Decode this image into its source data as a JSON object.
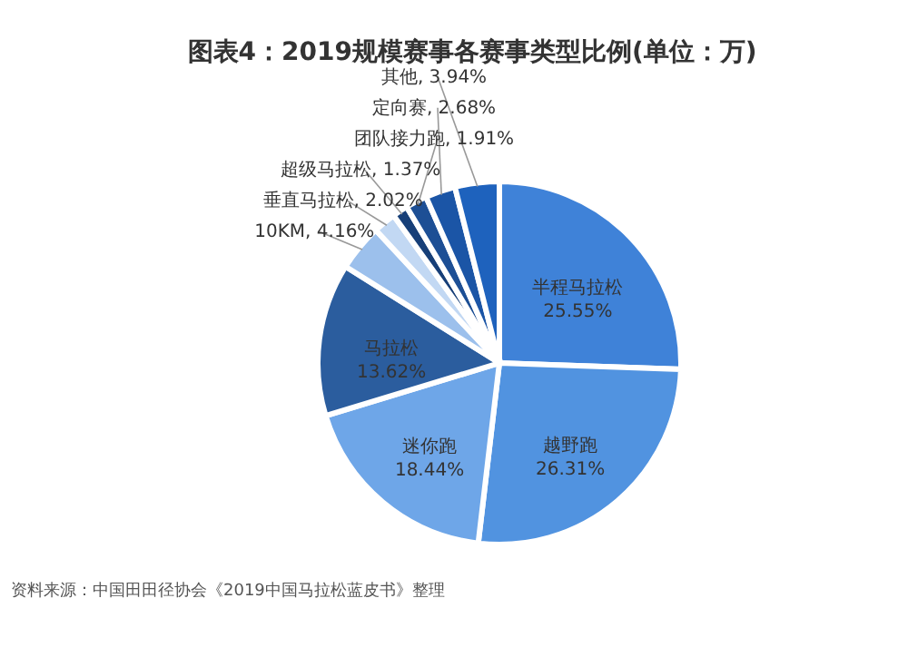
{
  "chart_data": {
    "type": "pie",
    "title": "图表4：2019规模赛事各赛事类型比例(单位：万)",
    "categories": [
      "半程马拉松",
      "越野跑",
      "迷你跑",
      "马拉松",
      "10KM",
      "垂直马拉松",
      "超级马拉松",
      "团队接力跑",
      "定向赛",
      "其他"
    ],
    "values": [
      25.55,
      26.31,
      18.44,
      13.62,
      4.16,
      2.02,
      1.37,
      1.91,
      2.68,
      3.94
    ],
    "value_labels": [
      "25.55%",
      "26.31%",
      "18.44%",
      "13.62%",
      "4.16%",
      "2.02%",
      "1.37%",
      "1.91%",
      "2.68%",
      "3.94%"
    ],
    "colors": [
      "#3f82d8",
      "#5193e0",
      "#6ea6e8",
      "#2b5d9e",
      "#9cc0ec",
      "#c2d8f3",
      "#173f78",
      "#1d4f95",
      "#1b55a6",
      "#1e62bd"
    ],
    "annotations": [
      "资料来源：中国田田径协会《2019中国马拉松蓝皮书》整理"
    ]
  }
}
